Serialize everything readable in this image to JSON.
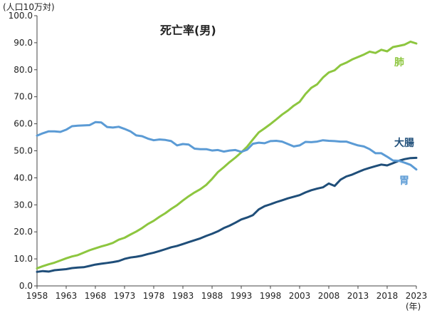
{
  "chart_data": {
    "type": "line",
    "title": "死亡率(男)",
    "y_unit": "(人口10万対)",
    "x_unit": "(年)",
    "xlim": [
      1958,
      2023
    ],
    "ylim": [
      0,
      100
    ],
    "x_ticks": [
      1958,
      1963,
      1968,
      1973,
      1978,
      1983,
      1988,
      1993,
      1998,
      2003,
      2008,
      2013,
      2018,
      2023
    ],
    "y_ticks": [
      "0.0",
      "10.0",
      "20.0",
      "30.0",
      "40.0",
      "50.0",
      "60.0",
      "70.0",
      "80.0",
      "90.0",
      "100.0"
    ],
    "grid": false,
    "series": [
      {
        "name": "肺",
        "color": "#8dc63f",
        "x": [
          1958,
          1959,
          1960,
          1961,
          1962,
          1963,
          1964,
          1965,
          1966,
          1967,
          1968,
          1969,
          1970,
          1971,
          1972,
          1973,
          1974,
          1975,
          1976,
          1977,
          1978,
          1979,
          1980,
          1981,
          1982,
          1983,
          1984,
          1985,
          1986,
          1987,
          1988,
          1989,
          1990,
          1991,
          1992,
          1993,
          1994,
          1995,
          1996,
          1997,
          1998,
          1999,
          2000,
          2001,
          2002,
          2003,
          2004,
          2005,
          2006,
          2007,
          2008,
          2009,
          2010,
          2011,
          2012,
          2013,
          2014,
          2015,
          2016,
          2017,
          2018,
          2019,
          2020,
          2021,
          2022,
          2023
        ],
        "values": [
          6.5,
          7.3,
          8.0,
          8.6,
          9.4,
          10.2,
          10.9,
          11.4,
          12.3,
          13.2,
          13.9,
          14.6,
          15.2,
          15.9,
          17.1,
          17.8,
          19.0,
          20.1,
          21.4,
          22.9,
          24.1,
          25.6,
          26.9,
          28.5,
          29.9,
          31.6,
          33.2,
          34.6,
          35.8,
          37.4,
          39.6,
          42.1,
          43.9,
          45.8,
          47.5,
          49.4,
          51.5,
          54.2,
          56.8,
          58.3,
          59.9,
          61.6,
          63.4,
          64.9,
          66.7,
          68.1,
          71.0,
          73.3,
          74.6,
          77.1,
          79.0,
          79.8,
          81.7,
          82.6,
          83.8,
          84.7,
          85.6,
          86.7,
          86.2,
          87.4,
          86.8,
          88.4,
          88.8,
          89.3,
          90.4,
          89.7
        ]
      },
      {
        "name": "大腸",
        "color": "#1f4e79",
        "x": [
          1958,
          1959,
          1960,
          1961,
          1962,
          1963,
          1964,
          1965,
          1966,
          1967,
          1968,
          1969,
          1970,
          1971,
          1972,
          1973,
          1974,
          1975,
          1976,
          1977,
          1978,
          1979,
          1980,
          1981,
          1982,
          1983,
          1984,
          1985,
          1986,
          1987,
          1988,
          1989,
          1990,
          1991,
          1992,
          1993,
          1994,
          1995,
          1996,
          1997,
          1998,
          1999,
          2000,
          2001,
          2002,
          2003,
          2004,
          2005,
          2006,
          2007,
          2008,
          2009,
          2010,
          2011,
          2012,
          2013,
          2014,
          2015,
          2016,
          2017,
          2018,
          2019,
          2020,
          2021,
          2022,
          2023
        ],
        "values": [
          5.2,
          5.5,
          5.3,
          5.8,
          6.0,
          6.2,
          6.6,
          6.8,
          6.9,
          7.4,
          7.9,
          8.2,
          8.5,
          8.8,
          9.2,
          10.0,
          10.5,
          10.8,
          11.2,
          11.8,
          12.3,
          12.9,
          13.6,
          14.3,
          14.8,
          15.5,
          16.2,
          16.9,
          17.6,
          18.5,
          19.3,
          20.2,
          21.4,
          22.3,
          23.4,
          24.6,
          25.3,
          26.2,
          28.3,
          29.5,
          30.2,
          31.0,
          31.7,
          32.4,
          33.0,
          33.6,
          34.6,
          35.4,
          36.0,
          36.5,
          37.9,
          37.0,
          39.3,
          40.5,
          41.2,
          42.1,
          43.0,
          43.7,
          44.3,
          44.9,
          44.6,
          45.4,
          46.3,
          46.9,
          47.3,
          47.4
        ]
      },
      {
        "name": "胃",
        "color": "#5b9bd5",
        "x": [
          1958,
          1959,
          1960,
          1961,
          1962,
          1963,
          1964,
          1965,
          1966,
          1967,
          1968,
          1969,
          1970,
          1971,
          1972,
          1973,
          1974,
          1975,
          1976,
          1977,
          1978,
          1979,
          1980,
          1981,
          1982,
          1983,
          1984,
          1985,
          1986,
          1987,
          1988,
          1989,
          1990,
          1991,
          1992,
          1993,
          1994,
          1995,
          1996,
          1997,
          1998,
          1999,
          2000,
          2001,
          2002,
          2003,
          2004,
          2005,
          2006,
          2007,
          2008,
          2009,
          2010,
          2011,
          2012,
          2013,
          2014,
          2015,
          2016,
          2017,
          2018,
          2019,
          2020,
          2021,
          2022,
          2023
        ],
        "values": [
          55.6,
          56.5,
          57.2,
          57.2,
          57.0,
          57.8,
          59.1,
          59.3,
          59.4,
          59.5,
          60.6,
          60.5,
          58.8,
          58.6,
          58.9,
          58.1,
          57.2,
          55.7,
          55.4,
          54.5,
          53.9,
          54.2,
          54.0,
          53.6,
          52.0,
          52.5,
          52.3,
          50.8,
          50.6,
          50.6,
          50.1,
          50.3,
          49.7,
          50.1,
          50.3,
          49.6,
          50.4,
          52.6,
          53.0,
          52.8,
          53.6,
          53.7,
          53.4,
          52.5,
          51.6,
          52.0,
          53.3,
          53.2,
          53.4,
          53.9,
          53.7,
          53.6,
          53.4,
          53.4,
          52.7,
          52.0,
          51.6,
          50.6,
          49.1,
          49.1,
          47.8,
          46.4,
          46.3,
          45.6,
          44.8,
          43.1
        ]
      }
    ]
  }
}
